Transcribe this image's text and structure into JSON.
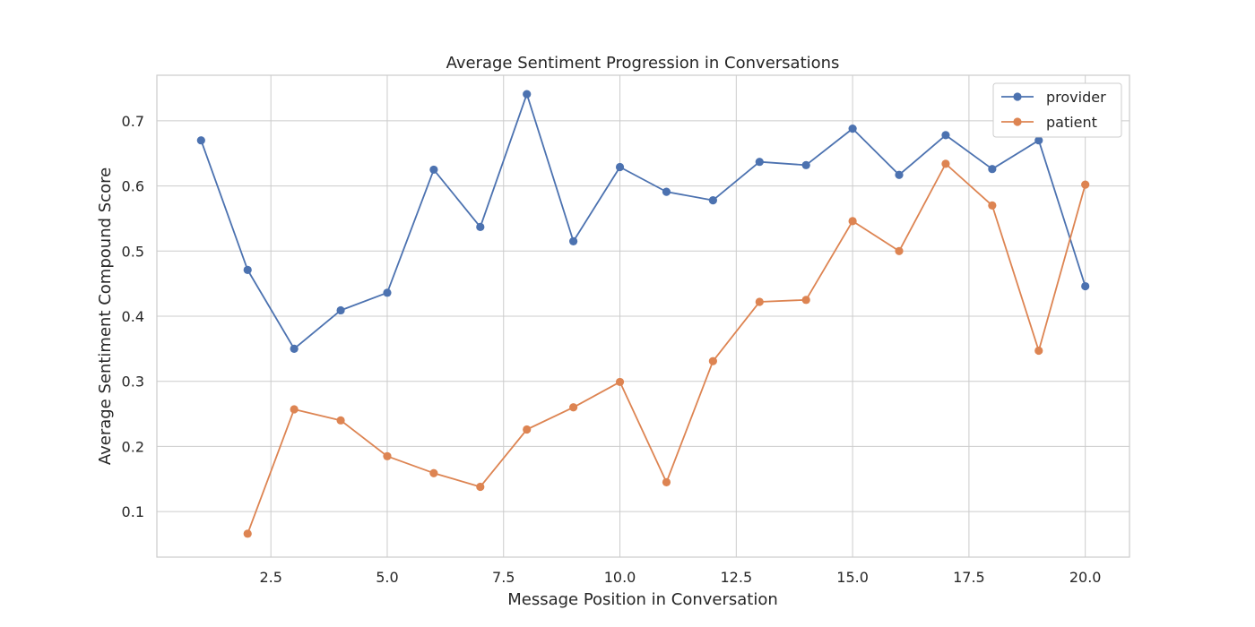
{
  "chart_data": {
    "type": "line",
    "title": "Average Sentiment Progression in Conversations",
    "xlabel": "Message Position in Conversation",
    "ylabel": "Average Sentiment Compound Score",
    "xlim": [
      0.05,
      20.95
    ],
    "ylim": [
      0.03,
      0.77
    ],
    "xticks": [
      2.5,
      5.0,
      7.5,
      10.0,
      12.5,
      15.0,
      17.5,
      20.0
    ],
    "xtick_labels": [
      "2.5",
      "5.0",
      "7.5",
      "10.0",
      "12.5",
      "15.0",
      "17.5",
      "20.0"
    ],
    "yticks": [
      0.1,
      0.2,
      0.3,
      0.4,
      0.5,
      0.6,
      0.7
    ],
    "ytick_labels": [
      "0.1",
      "0.2",
      "0.3",
      "0.4",
      "0.5",
      "0.6",
      "0.7"
    ],
    "grid": true,
    "legend_position": "top-right",
    "series": [
      {
        "name": "provider",
        "color": "#4c72b0",
        "x": [
          1,
          2,
          3,
          4,
          5,
          6,
          7,
          8,
          9,
          10,
          11,
          12,
          13,
          14,
          15,
          16,
          17,
          18,
          19,
          20
        ],
        "values": [
          0.67,
          0.471,
          0.35,
          0.409,
          0.436,
          0.625,
          0.537,
          0.741,
          0.515,
          0.629,
          0.591,
          0.578,
          0.637,
          0.632,
          0.688,
          0.617,
          0.678,
          0.626,
          0.67,
          0.446
        ]
      },
      {
        "name": "patient",
        "color": "#dd8452",
        "x": [
          2,
          3,
          4,
          5,
          6,
          7,
          8,
          9,
          10,
          11,
          12,
          13,
          14,
          15,
          16,
          17,
          18,
          19,
          20
        ],
        "values": [
          0.066,
          0.257,
          0.24,
          0.185,
          0.159,
          0.138,
          0.226,
          0.26,
          0.299,
          0.145,
          0.331,
          0.422,
          0.425,
          0.546,
          0.5,
          0.634,
          0.57,
          0.347,
          0.602
        ]
      }
    ]
  }
}
